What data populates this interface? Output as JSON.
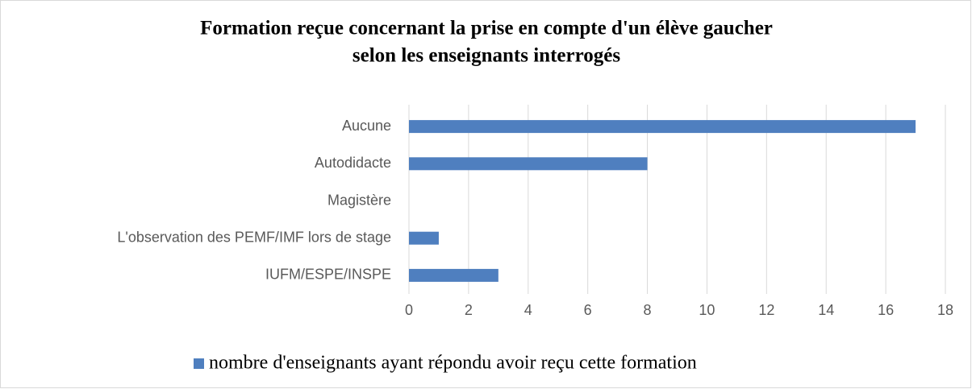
{
  "chart_data": {
    "type": "bar",
    "orientation": "horizontal",
    "title": [
      "Formation reçue concernant la prise en compte d'un élève gaucher",
      "selon les enseignants interrogés"
    ],
    "categories": [
      "Aucune",
      "Autodidacte",
      "Magistère",
      "L'observation des PEMF/IMF lors de stage",
      "IUFM/ESPE/INSPE"
    ],
    "series": [
      {
        "name": "nombre d'enseignants ayant répondu avoir reçu cette formation",
        "color": "#4f7fbf",
        "values": [
          17,
          8,
          0,
          1,
          3
        ]
      }
    ],
    "xlim": [
      0,
      18
    ],
    "xticks": [
      0,
      2,
      4,
      6,
      8,
      10,
      12,
      14,
      16,
      18
    ],
    "grid": true,
    "legend": "bottom"
  }
}
